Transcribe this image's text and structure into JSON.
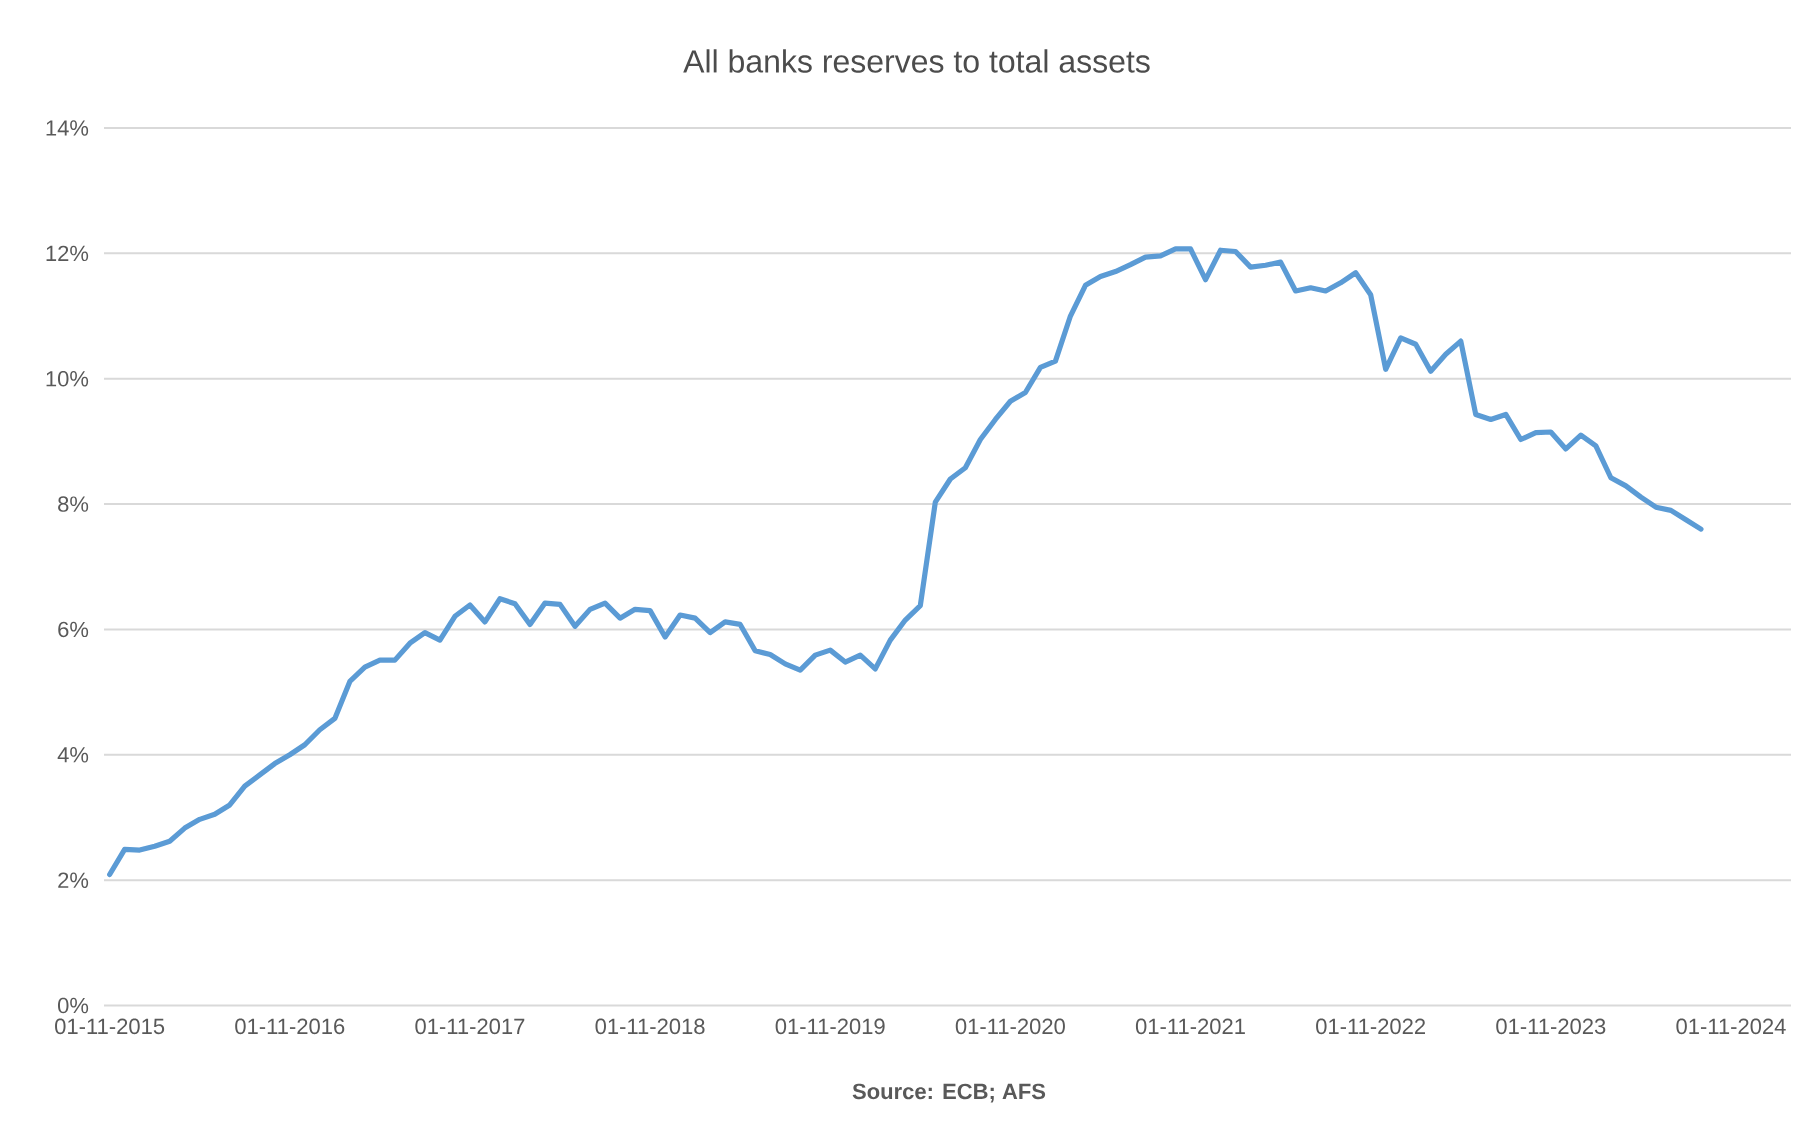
{
  "chart_data": {
    "type": "line",
    "title": "All banks reserves to total assets",
    "x": [
      "2015-11",
      "2015-12",
      "2016-01",
      "2016-02",
      "2016-03",
      "2016-04",
      "2016-05",
      "2016-06",
      "2016-07",
      "2016-08",
      "2016-09",
      "2016-10",
      "2016-11",
      "2016-12",
      "2017-01",
      "2017-02",
      "2017-03",
      "2017-04",
      "2017-05",
      "2017-06",
      "2017-07",
      "2017-08",
      "2017-09",
      "2017-10",
      "2017-11",
      "2017-12",
      "2018-01",
      "2018-02",
      "2018-03",
      "2018-04",
      "2018-05",
      "2018-06",
      "2018-07",
      "2018-08",
      "2018-09",
      "2018-10",
      "2018-11",
      "2018-12",
      "2019-01",
      "2019-02",
      "2019-03",
      "2019-04",
      "2019-05",
      "2019-06",
      "2019-07",
      "2019-08",
      "2019-09",
      "2019-10",
      "2019-11",
      "2019-12",
      "2020-01",
      "2020-02",
      "2020-03",
      "2020-04",
      "2020-05",
      "2020-06",
      "2020-07",
      "2020-08",
      "2020-09",
      "2020-10",
      "2020-11",
      "2020-12",
      "2021-01",
      "2021-02",
      "2021-03",
      "2021-04",
      "2021-05",
      "2021-06",
      "2021-07",
      "2021-08",
      "2021-09",
      "2021-10",
      "2021-11",
      "2021-12",
      "2022-01",
      "2022-02",
      "2022-03",
      "2022-04",
      "2022-05",
      "2022-06",
      "2022-07",
      "2022-08",
      "2022-09",
      "2022-10",
      "2022-11",
      "2022-12",
      "2023-01",
      "2023-02",
      "2023-03",
      "2023-04",
      "2023-05",
      "2023-06",
      "2023-07",
      "2023-08",
      "2023-09",
      "2023-10",
      "2023-11",
      "2023-12",
      "2024-01",
      "2024-02",
      "2024-03",
      "2024-04",
      "2024-05",
      "2024-06",
      "2024-07",
      "2024-08",
      "2024-09"
    ],
    "series": [
      {
        "color": "#5b9bd5",
        "values": [
          2.09,
          2.49,
          2.48,
          2.54,
          2.62,
          2.83,
          2.97,
          3.05,
          3.2,
          3.5,
          3.68,
          3.86,
          4.0,
          4.16,
          4.4,
          4.58,
          5.17,
          5.4,
          5.51,
          5.51,
          5.78,
          5.95,
          5.83,
          6.21,
          6.39,
          6.12,
          6.49,
          6.41,
          6.08,
          6.42,
          6.4,
          6.05,
          6.32,
          6.42,
          6.18,
          6.32,
          6.3,
          5.88,
          6.23,
          6.18,
          5.95,
          6.12,
          6.08,
          5.66,
          5.6,
          5.45,
          5.35,
          5.59,
          5.67,
          5.48,
          5.59,
          5.37,
          5.83,
          6.15,
          6.38,
          8.03,
          8.4,
          8.58,
          9.03,
          9.35,
          9.64,
          9.78,
          10.18,
          10.28,
          11.0,
          11.49,
          11.63,
          11.71,
          11.82,
          11.94,
          11.96,
          12.07,
          12.07,
          11.58,
          12.05,
          12.03,
          11.78,
          11.81,
          11.86,
          11.4,
          11.45,
          11.4,
          11.53,
          11.69,
          11.34,
          10.15,
          10.65,
          10.55,
          10.12,
          10.39,
          10.6,
          9.43,
          9.35,
          9.43,
          9.03,
          9.14,
          9.15,
          8.88,
          9.1,
          8.93,
          8.42,
          8.29,
          8.11,
          7.95,
          7.9,
          7.75,
          7.6
        ]
      }
    ],
    "xlim": [
      "2015-10-20",
      "2025-03-01"
    ],
    "xticks": [
      {
        "value": "2015-11-01",
        "label": "01-11-2015"
      },
      {
        "value": "2016-11-01",
        "label": "01-11-2016"
      },
      {
        "value": "2017-11-01",
        "label": "01-11-2017"
      },
      {
        "value": "2018-11-01",
        "label": "01-11-2018"
      },
      {
        "value": "2019-11-01",
        "label": "01-11-2019"
      },
      {
        "value": "2020-11-01",
        "label": "01-11-2020"
      },
      {
        "value": "2021-11-01",
        "label": "01-11-2021"
      },
      {
        "value": "2022-11-01",
        "label": "01-11-2022"
      },
      {
        "value": "2023-11-01",
        "label": "01-11-2023"
      },
      {
        "value": "2024-11-01",
        "label": "01-11-2024"
      }
    ],
    "ylim": [
      0,
      14
    ],
    "yticks": [
      {
        "value": 0,
        "label": "0%"
      },
      {
        "value": 2,
        "label": "2%"
      },
      {
        "value": 4,
        "label": "4%"
      },
      {
        "value": 6,
        "label": "6%"
      },
      {
        "value": 8,
        "label": "8%"
      },
      {
        "value": 10,
        "label": "10%"
      },
      {
        "value": 12,
        "label": "12%"
      },
      {
        "value": 14,
        "label": "14%"
      }
    ],
    "grid": "y",
    "annotations": [
      "Source: ECB; AFS"
    ]
  }
}
